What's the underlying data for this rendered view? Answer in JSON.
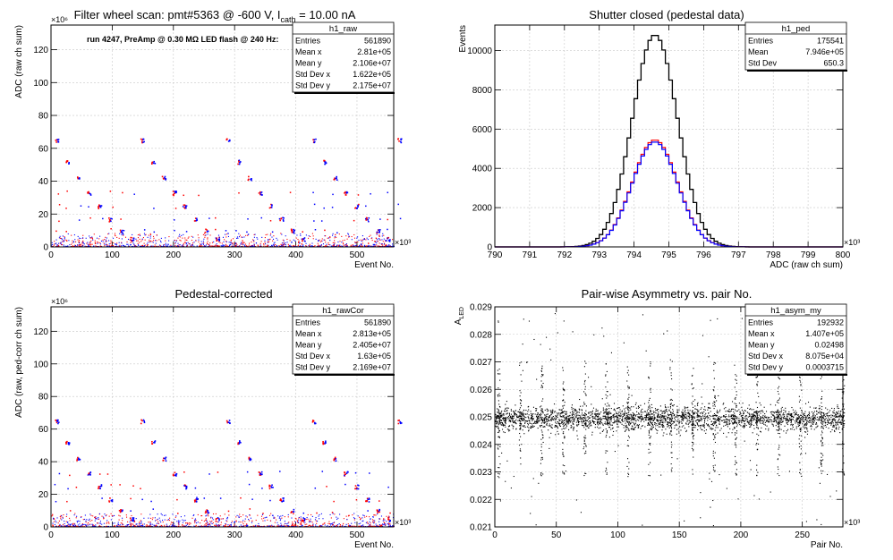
{
  "chart_data": [
    {
      "id": "raw",
      "type": "scatter",
      "title": "Filter wheel scan: pmt#5363 @  -600 V, I",
      "title_sub": "cath",
      "title_tail": " = 10.00 nA",
      "annotation": "run 4247, PreAmp @ 0.30 MΩ LED flash @  240 Hz:",
      "xlabel": "Event No.",
      "ylabel": "ADC (raw ch sum)",
      "x_exponent": "×10³",
      "y_exponent": "×10⁶",
      "xlim": [
        0,
        560
      ],
      "ylim": [
        0,
        135
      ],
      "xticks": [
        "0",
        "100",
        "200",
        "300",
        "400",
        "500"
      ],
      "yticks": [
        "0",
        "20",
        "40",
        "60",
        "80",
        "100",
        "120"
      ],
      "grid": true,
      "legend_position": "top-right",
      "stats": {
        "name": "h1_raw",
        "rows": [
          [
            "Entries",
            "561890"
          ],
          [
            "Mean x",
            "2.81e+05"
          ],
          [
            "Mean y",
            "2.106e+07"
          ],
          [
            "Std Dev x",
            "1.622e+05"
          ],
          [
            "Std Dev y",
            "2.175e+07"
          ]
        ]
      },
      "series_colors": [
        "#ff0000",
        "#0000ff"
      ],
      "levels": [
        65,
        52,
        42,
        33,
        25,
        17,
        10,
        5
      ],
      "period": 17.5
    },
    {
      "id": "ped",
      "type": "line",
      "title": "Shutter closed (pedestal data)",
      "xlabel": "ADC (raw ch sum)",
      "ylabel": "Events",
      "x_exponent": "×10³",
      "xlim": [
        790,
        800
      ],
      "ylim": [
        0,
        11300
      ],
      "xticks": [
        "790",
        "791",
        "792",
        "793",
        "794",
        "795",
        "796",
        "797",
        "798",
        "799",
        "800"
      ],
      "yticks": [
        "0",
        "2000",
        "4000",
        "6000",
        "8000",
        "10000"
      ],
      "grid": true,
      "legend_position": "top-right",
      "stats": {
        "name": "h1_ped",
        "rows": [
          [
            "Entries",
            "175541"
          ],
          [
            "Mean",
            "7.946e+05"
          ],
          [
            "Std Dev",
            "650.3"
          ]
        ]
      },
      "mean": 794.6,
      "sigma": 0.65,
      "series": [
        {
          "color": "#000000",
          "peak": 10800
        },
        {
          "color": "#ff0000",
          "peak": 5450
        },
        {
          "color": "#0000ff",
          "peak": 5350
        }
      ]
    },
    {
      "id": "rawCor",
      "type": "scatter",
      "title": "Pedestal-corrected",
      "xlabel": "Event No.",
      "ylabel": "ADC (raw, ped-corr ch sum)",
      "x_exponent": "×10³",
      "y_exponent": "×10⁶",
      "xlim": [
        0,
        560
      ],
      "ylim": [
        0,
        135
      ],
      "xticks": [
        "0",
        "100",
        "200",
        "300",
        "400",
        "500"
      ],
      "yticks": [
        "0",
        "20",
        "40",
        "60",
        "80",
        "100",
        "120"
      ],
      "grid": true,
      "legend_position": "top-right",
      "stats": {
        "name": "h1_rawCor",
        "rows": [
          [
            "Entries",
            "561890"
          ],
          [
            "Mean x",
            "2.813e+05"
          ],
          [
            "Mean y",
            "2.405e+07"
          ],
          [
            "Std Dev x",
            "1.63e+05"
          ],
          [
            "Std Dev y",
            "2.169e+07"
          ]
        ]
      },
      "series_colors": [
        "#ff0000",
        "#0000ff"
      ],
      "levels": [
        65,
        52,
        42,
        33,
        25,
        17,
        10,
        5
      ],
      "period": 17.5
    },
    {
      "id": "asym",
      "type": "scatter",
      "title": "Pair-wise Asymmetry vs. pair No.",
      "xlabel": "Pair No.",
      "ylabel": "A",
      "ylabel_sub": "LED",
      "x_exponent": "×10³",
      "xlim": [
        0,
        283
      ],
      "ylim": [
        0.021,
        0.029
      ],
      "xticks": [
        "0",
        "50",
        "100",
        "150",
        "200",
        "250"
      ],
      "yticks": [
        "0.021",
        "0.022",
        "0.023",
        "0.024",
        "0.025",
        "0.026",
        "0.027",
        "0.028",
        "0.029"
      ],
      "grid": true,
      "legend_position": "top-right",
      "stats": {
        "name": "h1_asym_my",
        "rows": [
          [
            "Entries",
            "192932"
          ],
          [
            "Mean x",
            "1.407e+05"
          ],
          [
            "Mean y",
            "0.02498"
          ],
          [
            "Std Dev x",
            "8.075e+04"
          ],
          [
            "Std Dev y",
            "0.0003715"
          ]
        ]
      },
      "band_center": 0.02495,
      "band_halfwidth": 0.0004,
      "period": 17.5,
      "color": "#000000"
    }
  ]
}
